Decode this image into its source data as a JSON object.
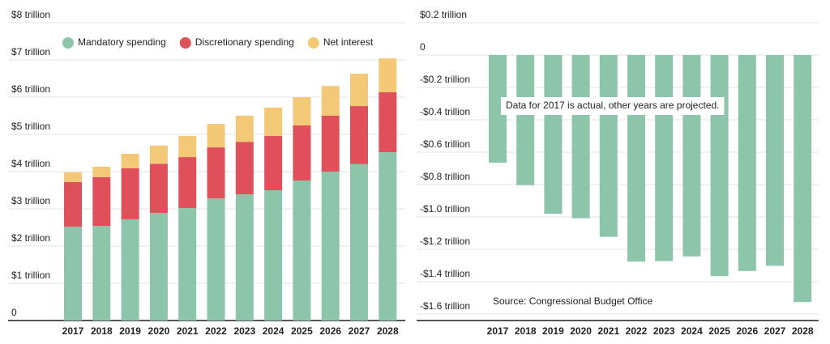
{
  "chart_data": [
    {
      "type": "stacked_bar",
      "categories": [
        "2017",
        "2018",
        "2019",
        "2020",
        "2021",
        "2022",
        "2023",
        "2024",
        "2025",
        "2026",
        "2027",
        "2028"
      ],
      "series": [
        {
          "name": "Mandatory spending",
          "color": "#8cc5a9",
          "values": [
            2.52,
            2.54,
            2.72,
            2.89,
            3.02,
            3.28,
            3.39,
            3.5,
            3.76,
            4.0,
            4.2,
            4.52
          ]
        },
        {
          "name": "Discretionary spending",
          "color": "#e0505a",
          "values": [
            1.2,
            1.31,
            1.37,
            1.32,
            1.37,
            1.37,
            1.41,
            1.46,
            1.48,
            1.5,
            1.56,
            1.61
          ]
        },
        {
          "name": "Net interest",
          "color": "#f3c877",
          "values": [
            0.26,
            0.28,
            0.39,
            0.49,
            0.57,
            0.63,
            0.7,
            0.76,
            0.76,
            0.8,
            0.87,
            0.91
          ]
        }
      ],
      "ylim": [
        0,
        8
      ],
      "yticks": [
        0,
        {
          "value": 1,
          "label": "$1 trillion"
        },
        {
          "value": 2,
          "label": "$2 trillion"
        },
        {
          "value": 3,
          "label": "$3 trillion"
        },
        {
          "value": 4,
          "label": "$4 trillion"
        },
        {
          "value": 5,
          "label": "$5 trillion"
        },
        {
          "value": 6,
          "label": "$6 trillion"
        },
        {
          "value": 7,
          "label": "$7 trillion"
        },
        {
          "value": 8,
          "label": "$8 trillion"
        }
      ],
      "grid": true,
      "legend": "top"
    },
    {
      "type": "bar",
      "categories": [
        "2017",
        "2018",
        "2019",
        "2020",
        "2021",
        "2022",
        "2023",
        "2024",
        "2025",
        "2026",
        "2027",
        "2028"
      ],
      "values": [
        -0.665,
        -0.804,
        -0.981,
        -1.008,
        -1.123,
        -1.276,
        -1.273,
        -1.244,
        -1.366,
        -1.334,
        -1.302,
        -1.526
      ],
      "color": "#8cc5a9",
      "ylim": [
        -1.64,
        0.2
      ],
      "yticks": [
        {
          "value": 0.2,
          "label": "$0.2 trillion"
        },
        0,
        {
          "value": -0.2,
          "label": "-$0.2 trillion"
        },
        {
          "value": -0.4,
          "label": "-$0.4 trillion"
        },
        {
          "value": -0.6,
          "label": "-$0.6 trillion"
        },
        {
          "value": -0.8,
          "label": "-$0.8 trillion"
        },
        {
          "value": -1.0,
          "label": "-$1.0 trillion"
        },
        {
          "value": -1.2,
          "label": "-$1.2 trillion"
        },
        {
          "value": -1.4,
          "label": "-$1.4 trillion"
        },
        {
          "value": -1.6,
          "label": "-$1.6 trillion"
        }
      ],
      "grid": true,
      "annotations": [
        "Data for 2017 is actual, other years are projected.",
        "Source: Congressional Budget Office"
      ]
    }
  ]
}
